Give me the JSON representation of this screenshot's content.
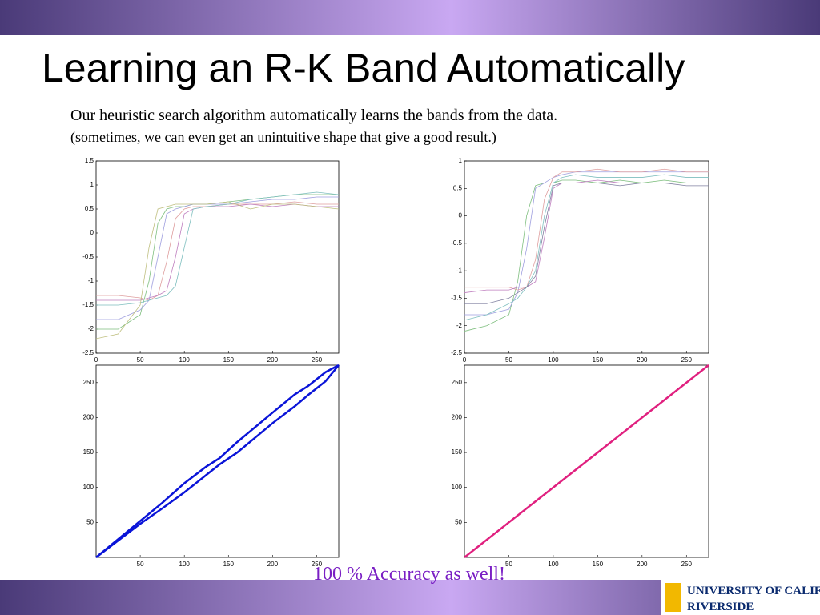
{
  "slide": {
    "title": "Learning an R-K Band Automatically",
    "lines": [
      "Our heuristic search algorithm automatically learns the bands from the data.",
      "(sometimes, we can even get an unintuitive shape that give a good result.)"
    ],
    "caption": "100 % Accuracy as well!",
    "logo": [
      "UNIVERSITY OF CALIFORNIA",
      "RIVERSIDE"
    ]
  },
  "chart_data": [
    {
      "type": "line",
      "x": [
        0,
        25,
        50,
        60,
        70,
        80,
        90,
        100,
        110,
        125,
        150,
        175,
        200,
        225,
        250,
        275
      ],
      "xlim": [
        0,
        275
      ],
      "ylim": [
        -2.5,
        1.5
      ],
      "xticks": [
        0,
        50,
        100,
        150,
        200,
        250
      ],
      "yticks": [
        -2.5,
        -2,
        -1.5,
        -1,
        -0.5,
        0,
        0.5,
        1,
        1.5
      ],
      "series": [
        {
          "color": "#7fbf7f",
          "values": [
            -2.0,
            -2.0,
            -1.7,
            -1.0,
            0.2,
            0.5,
            0.55,
            0.55,
            0.6,
            0.6,
            0.65,
            0.7,
            0.75,
            0.8,
            0.8,
            0.8
          ]
        },
        {
          "color": "#9f9fdf",
          "values": [
            -1.8,
            -1.8,
            -1.6,
            -1.4,
            -0.5,
            0.4,
            0.5,
            0.55,
            0.6,
            0.6,
            0.6,
            0.65,
            0.7,
            0.7,
            0.75,
            0.75
          ]
        },
        {
          "color": "#df9f9f",
          "values": [
            -1.3,
            -1.3,
            -1.35,
            -1.4,
            -1.3,
            -0.6,
            0.3,
            0.5,
            0.55,
            0.55,
            0.6,
            0.6,
            0.6,
            0.65,
            0.6,
            0.6
          ]
        },
        {
          "color": "#bf7fbf",
          "values": [
            -1.4,
            -1.4,
            -1.4,
            -1.35,
            -1.3,
            -1.2,
            -0.5,
            0.4,
            0.5,
            0.55,
            0.55,
            0.6,
            0.55,
            0.6,
            0.55,
            0.55
          ]
        },
        {
          "color": "#7fbfbf",
          "values": [
            -1.5,
            -1.5,
            -1.45,
            -1.4,
            -1.35,
            -1.3,
            -1.1,
            -0.3,
            0.5,
            0.55,
            0.6,
            0.7,
            0.75,
            0.8,
            0.85,
            0.8
          ]
        },
        {
          "color": "#bfbf7f",
          "values": [
            -2.2,
            -2.1,
            -1.5,
            -0.3,
            0.5,
            0.55,
            0.6,
            0.6,
            0.6,
            0.6,
            0.65,
            0.5,
            0.6,
            0.6,
            0.55,
            0.5
          ]
        }
      ]
    },
    {
      "type": "line",
      "x": [
        0,
        25,
        50,
        60,
        70,
        80,
        90,
        100,
        110,
        125,
        150,
        175,
        200,
        225,
        250,
        275
      ],
      "xlim": [
        0,
        275
      ],
      "ylim": [
        -2.5,
        1
      ],
      "xticks": [
        0,
        50,
        100,
        150,
        200,
        250
      ],
      "yticks": [
        -2.5,
        -2,
        -1.5,
        -1,
        -0.5,
        0,
        0.5,
        1
      ],
      "series": [
        {
          "color": "#7fbf7f",
          "values": [
            -2.1,
            -2.0,
            -1.8,
            -1.2,
            0.0,
            0.55,
            0.6,
            0.6,
            0.65,
            0.65,
            0.6,
            0.65,
            0.6,
            0.65,
            0.6,
            0.6
          ]
        },
        {
          "color": "#9f9fdf",
          "values": [
            -1.8,
            -1.8,
            -1.7,
            -1.4,
            -0.6,
            0.5,
            0.6,
            0.7,
            0.75,
            0.8,
            0.8,
            0.8,
            0.8,
            0.8,
            0.8,
            0.8
          ]
        },
        {
          "color": "#df9f9f",
          "values": [
            -1.3,
            -1.3,
            -1.3,
            -1.35,
            -1.3,
            -0.8,
            0.3,
            0.7,
            0.8,
            0.8,
            0.85,
            0.8,
            0.8,
            0.85,
            0.8,
            0.8
          ]
        },
        {
          "color": "#bf7fbf",
          "values": [
            -1.4,
            -1.35,
            -1.35,
            -1.3,
            -1.3,
            -1.2,
            -0.4,
            0.5,
            0.6,
            0.6,
            0.65,
            0.6,
            0.6,
            0.6,
            0.6,
            0.6
          ]
        },
        {
          "color": "#7fbfbf",
          "values": [
            -1.9,
            -1.8,
            -1.6,
            -1.5,
            -1.3,
            -1.0,
            0.0,
            0.6,
            0.7,
            0.75,
            0.7,
            0.7,
            0.7,
            0.75,
            0.7,
            0.7
          ]
        },
        {
          "color": "#8080a0",
          "values": [
            -1.6,
            -1.6,
            -1.5,
            -1.4,
            -1.3,
            -1.1,
            -0.2,
            0.55,
            0.6,
            0.6,
            0.6,
            0.55,
            0.6,
            0.6,
            0.55,
            0.55
          ]
        }
      ]
    },
    {
      "type": "line",
      "x": [
        0,
        50,
        75,
        100,
        125,
        140,
        160,
        200,
        225,
        240,
        260,
        275
      ],
      "xlim": [
        0,
        275
      ],
      "ylim": [
        0,
        275
      ],
      "xticks": [
        50,
        100,
        150,
        200,
        250
      ],
      "yticks": [
        50,
        100,
        150,
        200,
        250
      ],
      "width": 2.5,
      "series": [
        {
          "color": "#0a14d8",
          "values": [
            0,
            48,
            70,
            93,
            118,
            133,
            150,
            192,
            216,
            232,
            252,
            275
          ]
        },
        {
          "color": "#0a14d8",
          "values": [
            0,
            52,
            78,
            106,
            130,
            142,
            165,
            207,
            233,
            245,
            265,
            275
          ]
        }
      ]
    },
    {
      "type": "line",
      "x": [
        0,
        275
      ],
      "xlim": [
        0,
        275
      ],
      "ylim": [
        0,
        275
      ],
      "xticks": [
        50,
        100,
        150,
        200,
        250
      ],
      "yticks": [
        50,
        100,
        150,
        200,
        250
      ],
      "width": 2.5,
      "series": [
        {
          "color": "#e0207f",
          "values": [
            0,
            275
          ]
        }
      ]
    }
  ]
}
